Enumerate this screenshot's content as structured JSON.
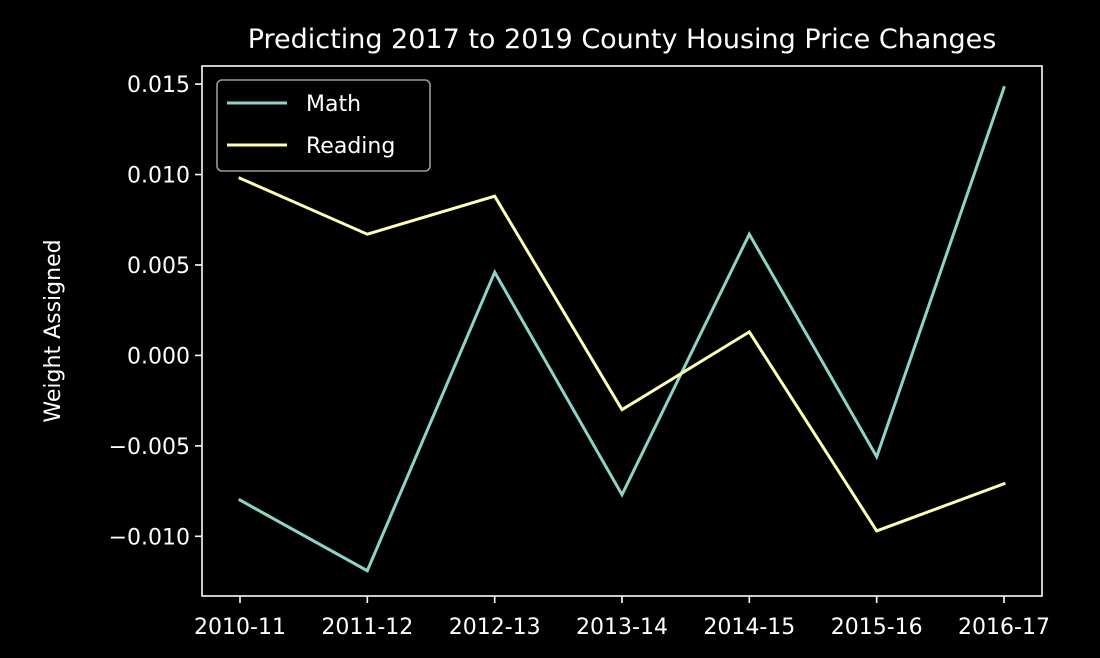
{
  "chart_data": {
    "type": "line",
    "title": "Predicting 2017 to 2019 County Housing Price Changes",
    "xlabel": "",
    "ylabel": "Weight Assigned",
    "categories": [
      "2010-11",
      "2011-12",
      "2012-13",
      "2013-14",
      "2014-15",
      "2015-16",
      "2016-17"
    ],
    "y_ticks": [
      -0.01,
      -0.005,
      0.0,
      0.005,
      0.01,
      0.015
    ],
    "y_tick_labels": [
      "−0.010",
      "−0.005",
      "0.000",
      "0.005",
      "0.010",
      "0.015"
    ],
    "ylim": [
      -0.0133,
      0.016
    ],
    "grid": false,
    "legend_position": "top-left",
    "series": [
      {
        "name": "Math",
        "color": "#8dd3c7",
        "values": [
          -0.008,
          -0.0119,
          0.0046,
          -0.0077,
          0.0067,
          -0.0056,
          0.0148
        ]
      },
      {
        "name": "Reading",
        "color": "#feffb3",
        "values": [
          0.0098,
          0.0067,
          0.0088,
          -0.003,
          0.0013,
          -0.0097,
          -0.0071
        ]
      }
    ]
  }
}
